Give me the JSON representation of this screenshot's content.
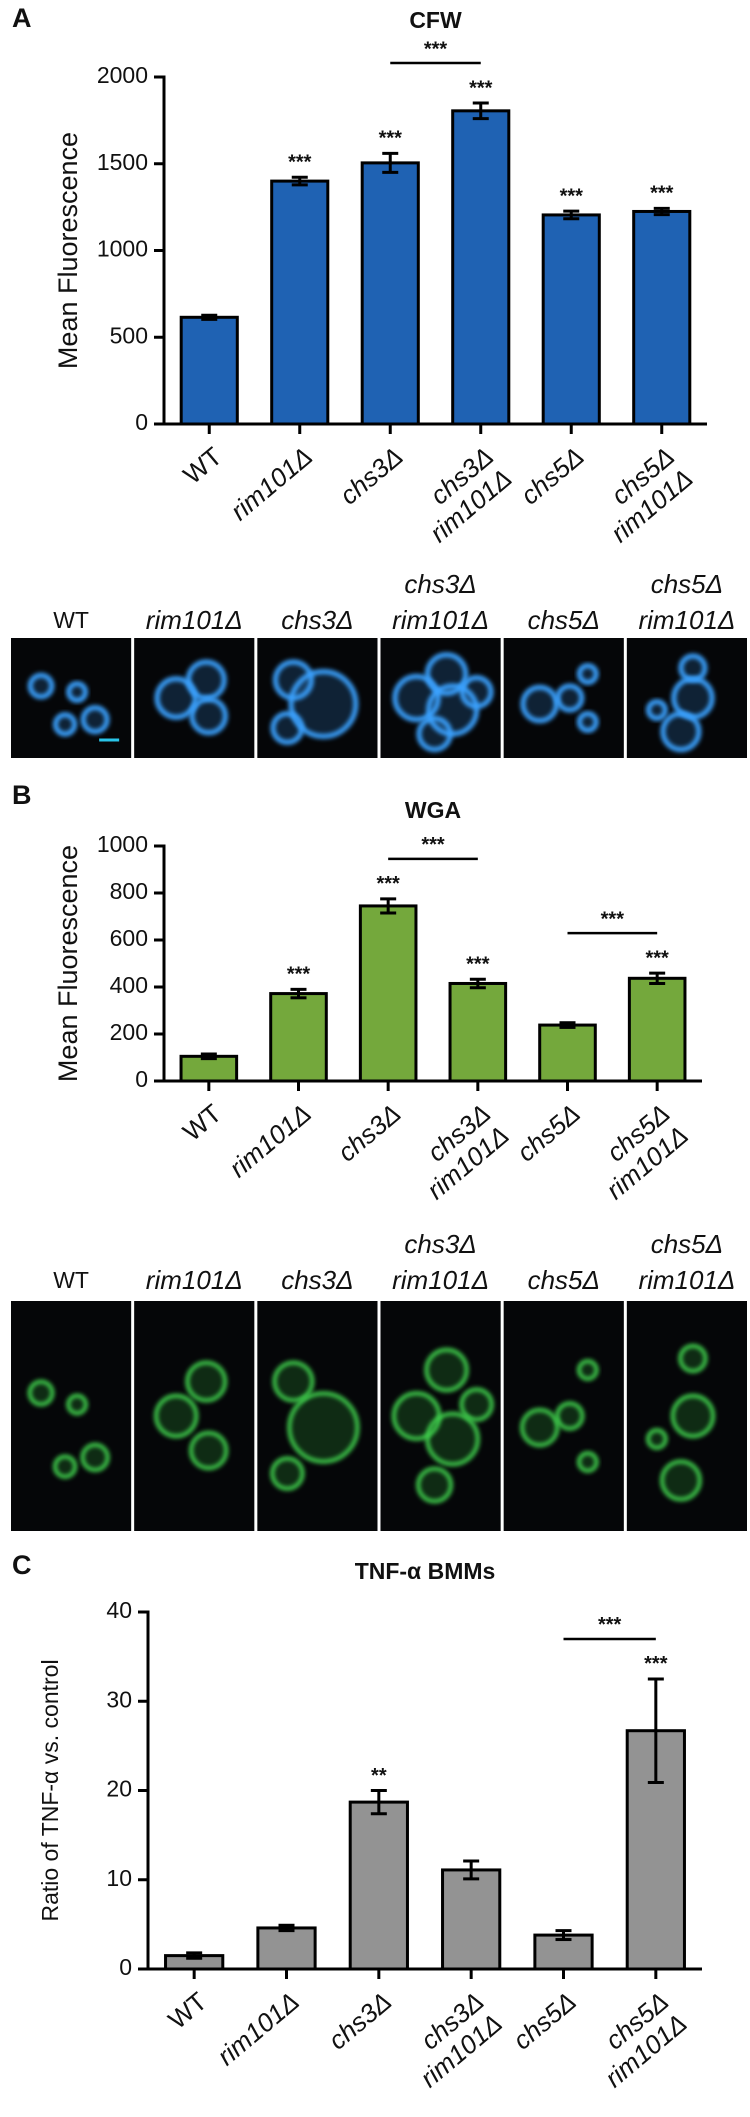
{
  "chart_data": [
    {
      "panel": "A",
      "type": "bar",
      "title": "CFW",
      "y_label": "Mean Fluorescence",
      "categories": [
        [
          "WT"
        ],
        [
          "rim101Δ"
        ],
        [
          "chs3Δ"
        ],
        [
          "chs3Δ",
          "rim101Δ"
        ],
        [
          "chs5Δ"
        ],
        [
          "chs5Δ",
          "rim101Δ"
        ]
      ],
      "values": [
        615,
        1400,
        1505,
        1805,
        1205,
        1225
      ],
      "errors": [
        12,
        22,
        55,
        45,
        22,
        18
      ],
      "color": "#1f62b3",
      "ylim": [
        0,
        2000
      ],
      "yticks": [
        0,
        500,
        1000,
        1500,
        2000
      ],
      "significance": [
        null,
        "***",
        "***",
        "***",
        "***",
        "***"
      ],
      "comparisons": [
        {
          "categories": [
            2,
            3
          ],
          "label": "***"
        }
      ]
    },
    {
      "panel": "B",
      "type": "bar",
      "title": "WGA",
      "y_label": "Mean Fluorescence",
      "categories": [
        [
          "WT"
        ],
        [
          "rim101Δ"
        ],
        [
          "chs3Δ"
        ],
        [
          "chs3Δ",
          "rim101Δ"
        ],
        [
          "chs5Δ"
        ],
        [
          "chs5Δ",
          "rim101Δ"
        ]
      ],
      "values": [
        105,
        372,
        745,
        415,
        238,
        437
      ],
      "errors": [
        10,
        18,
        30,
        18,
        10,
        22
      ],
      "color": "#74a83c",
      "ylim": [
        0,
        1000
      ],
      "yticks": [
        0,
        200,
        400,
        600,
        800,
        1000
      ],
      "significance": [
        null,
        "***",
        "***",
        "***",
        null,
        "***"
      ],
      "comparisons": [
        {
          "categories": [
            2,
            3
          ],
          "label": "***"
        },
        {
          "categories": [
            4,
            5
          ],
          "label": "***"
        }
      ]
    },
    {
      "panel": "C",
      "type": "bar",
      "title": "TNF-α BMMs",
      "y_label": "Ratio of TNF-α vs. control",
      "categories": [
        [
          "WT"
        ],
        [
          "rim101Δ"
        ],
        [
          "chs3Δ"
        ],
        [
          "chs3Δ",
          "rim101Δ"
        ],
        [
          "chs5Δ"
        ],
        [
          "chs5Δ",
          "rim101Δ"
        ]
      ],
      "values": [
        1.5,
        4.6,
        18.7,
        11.1,
        3.8,
        26.7
      ],
      "errors": [
        0.3,
        0.3,
        1.3,
        1.0,
        0.5,
        5.8
      ],
      "color": "#939393",
      "ylim": [
        0,
        40
      ],
      "yticks": [
        0,
        10,
        20,
        30,
        40
      ],
      "significance": [
        null,
        null,
        "**",
        null,
        null,
        "***"
      ],
      "comparisons": [
        {
          "categories": [
            4,
            5
          ],
          "label": "***"
        }
      ]
    }
  ],
  "image_strips": [
    {
      "labels": [
        [
          "WT"
        ],
        [
          "rim101Δ"
        ],
        [
          "chs3Δ"
        ],
        [
          "chs3Δ",
          "rim101Δ"
        ],
        [
          "chs5Δ"
        ],
        [
          "chs5Δ",
          "rim101Δ"
        ]
      ],
      "color": "#3aa2ff"
    },
    {
      "labels": [
        [
          "WT"
        ],
        [
          "rim101Δ"
        ],
        [
          "chs3Δ"
        ],
        [
          "chs3Δ",
          "rim101Δ"
        ],
        [
          "chs5Δ"
        ],
        [
          "chs5Δ",
          "rim101Δ"
        ]
      ],
      "color": "#3fd24e"
    }
  ]
}
